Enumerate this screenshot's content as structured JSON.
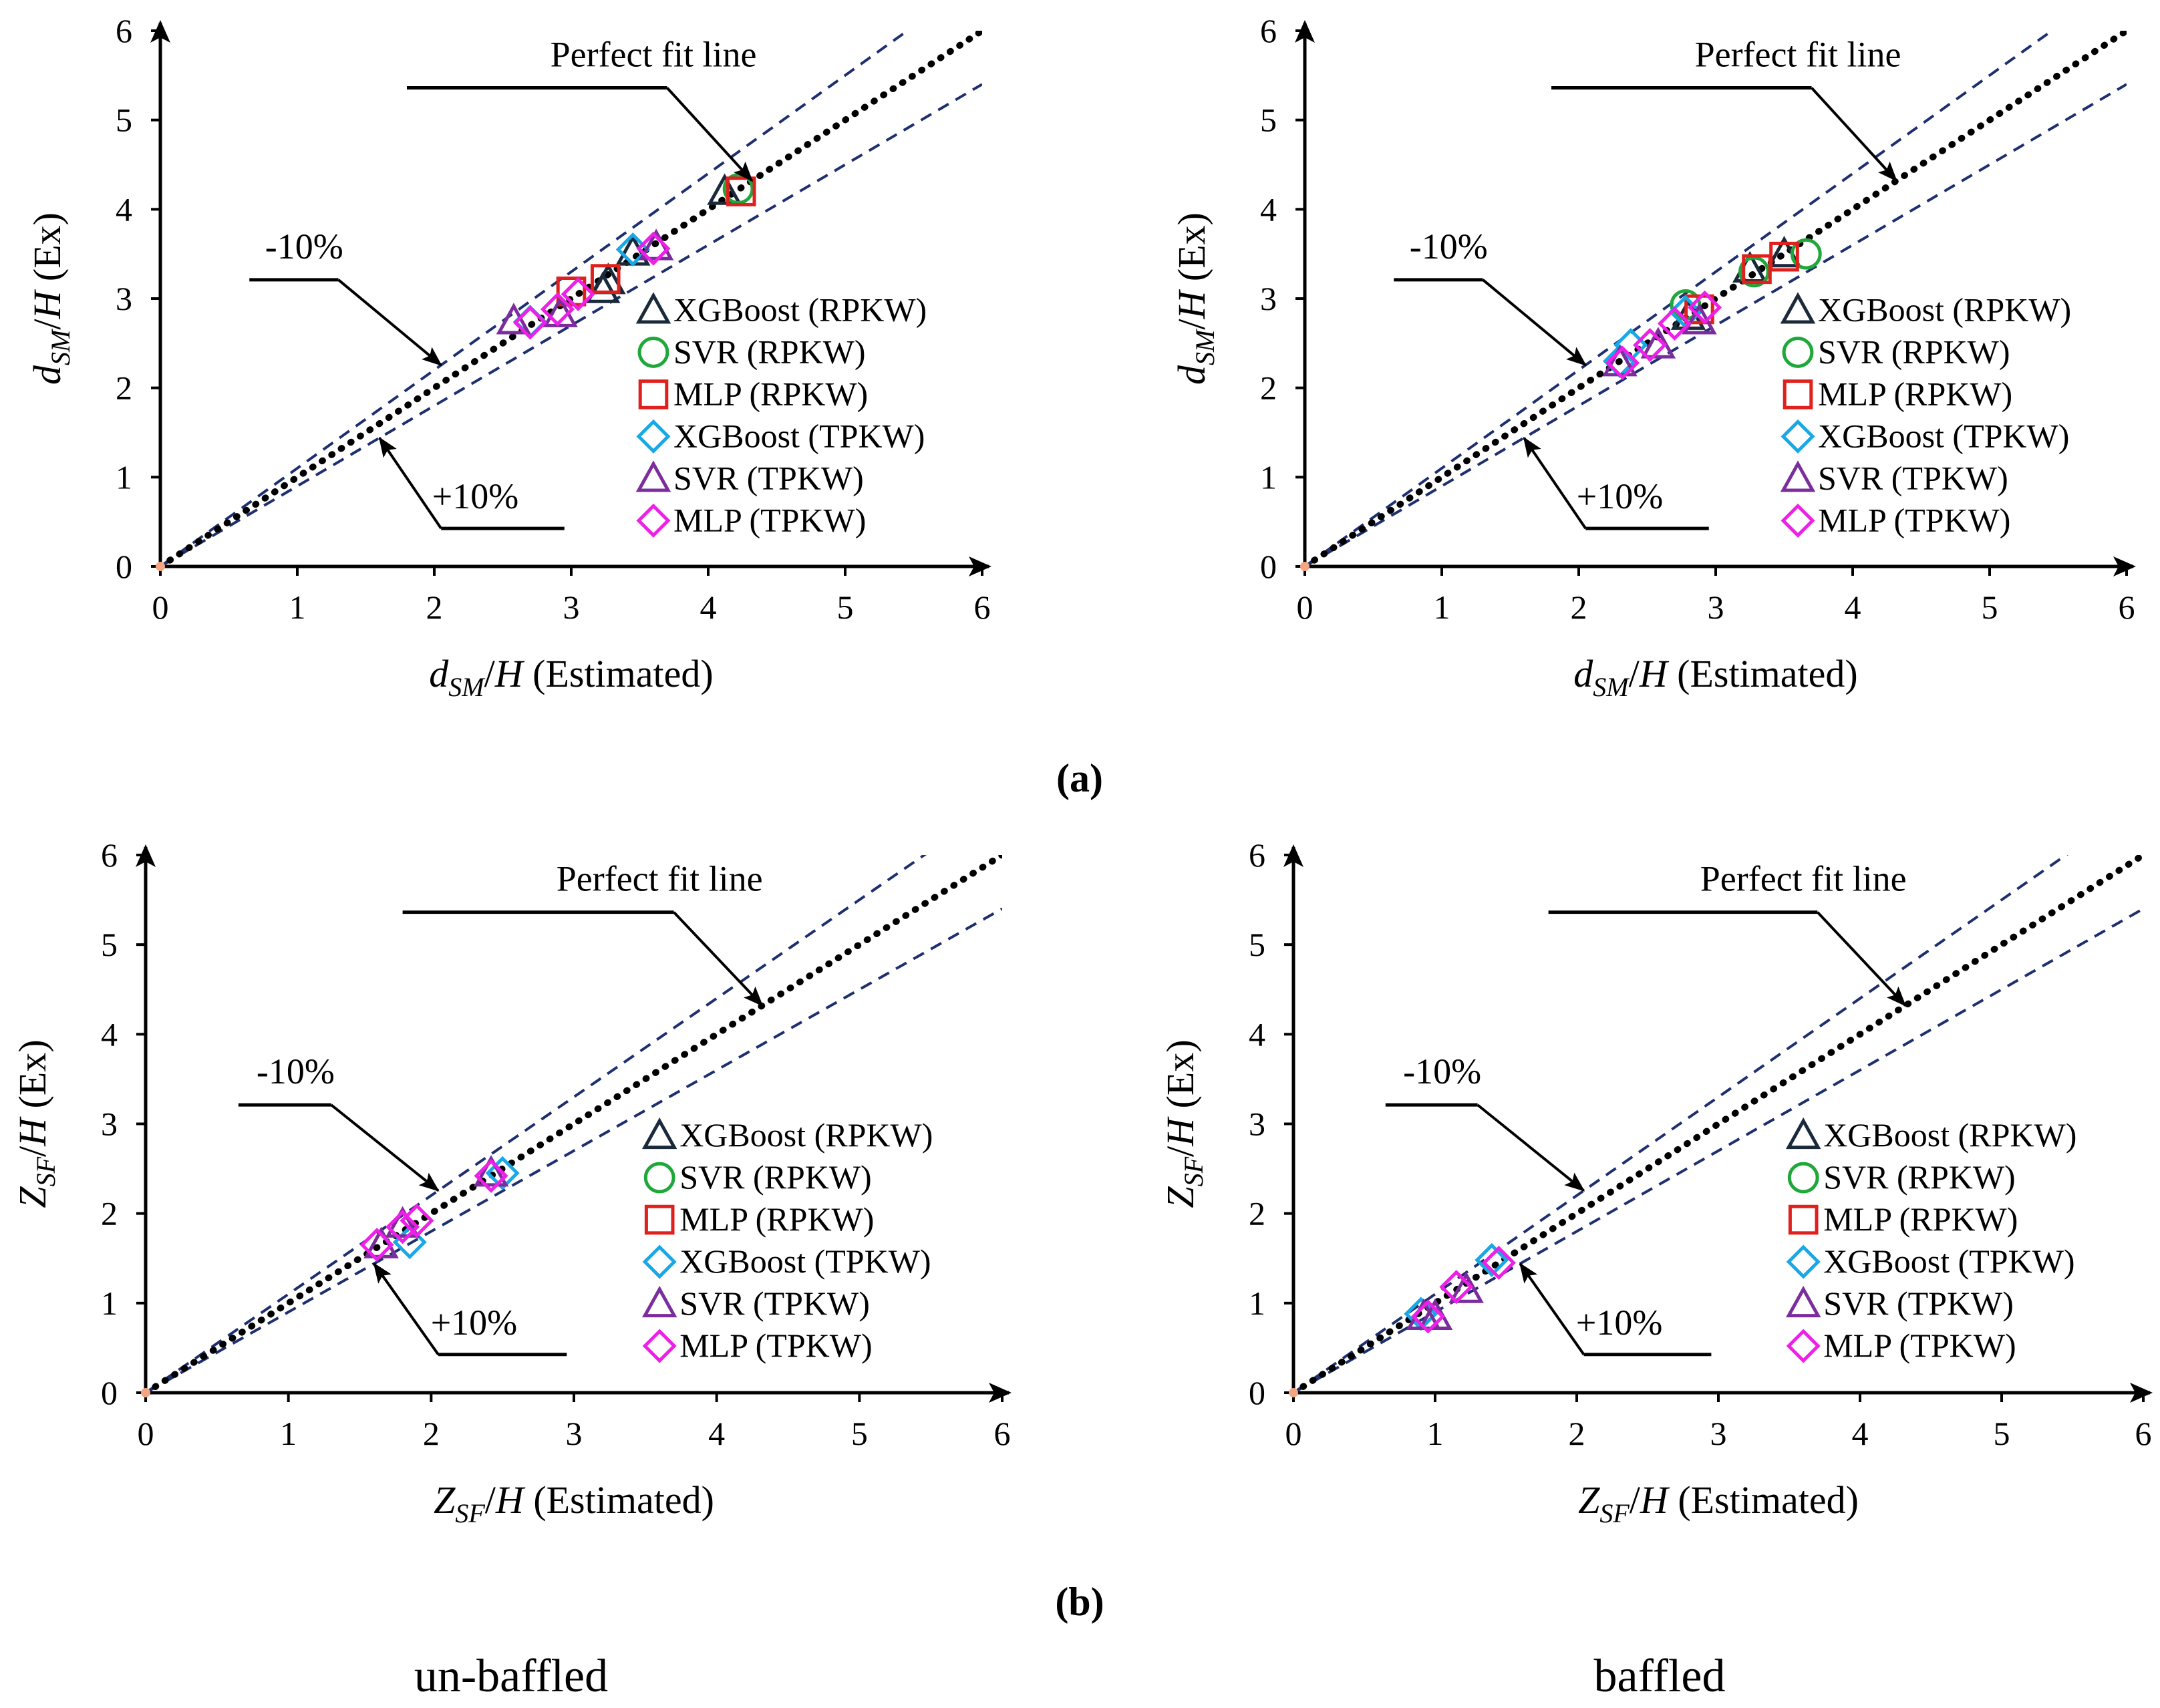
{
  "colors": {
    "XGBoost (RPKW)": "#1a2a3a",
    "SVR (RPKW)": "#1fa83a",
    "MLP (RPKW)": "#e0201c",
    "XGBoost (TPKW)": "#19a8e6",
    "SVR (TPKW)": "#7b2d9e",
    "MLP (TPKW)": "#ee1fe6",
    "perfect_line": "#000000",
    "band_line": "#1d2f6f",
    "origin_marker": "#f4a582"
  },
  "labels": {
    "panel_a": "(a)",
    "panel_b": "(b)",
    "caption_left": "un-baffled",
    "caption_right": "baffled"
  },
  "chart_data": [
    {
      "id": "a-unbaffled",
      "type": "scatter",
      "xlabel": {
        "main": "d",
        "sub": "SM",
        "rest": "/H (Estimated)"
      },
      "ylabel": {
        "main": "d",
        "sub": "SM",
        "rest": "/H (Ex)"
      },
      "xlim": [
        0,
        6
      ],
      "ylim": [
        0,
        6
      ],
      "xticks": [
        0,
        1,
        2,
        3,
        4,
        5,
        6
      ],
      "yticks": [
        0,
        1,
        2,
        3,
        4,
        5,
        6
      ],
      "reference_lines": {
        "perfect_fit": 1.0,
        "minus_10": 1.1,
        "plus_10": 0.9
      },
      "annotations": {
        "perfect": "Perfect fit line",
        "minus": "-10%",
        "plus": "+10%"
      },
      "legend": [
        "XGBoost (RPKW)",
        "SVR (RPKW)",
        "MLP (RPKW)",
        "XGBoost (TPKW)",
        "SVR (TPKW)",
        "MLP (TPKW)"
      ],
      "series": [
        {
          "name": "XGBoost (RPKW)",
          "marker": "triangle",
          "points": [
            [
              4.12,
              4.2
            ],
            [
              3.23,
              3.1
            ],
            [
              3.27,
              3.2
            ],
            [
              3.45,
              3.52
            ]
          ]
        },
        {
          "name": "SVR (RPKW)",
          "marker": "circle",
          "points": [
            [
              4.22,
              4.23
            ]
          ]
        },
        {
          "name": "MLP (RPKW)",
          "marker": "square",
          "points": [
            [
              4.24,
              4.2
            ],
            [
              3.25,
              3.22
            ],
            [
              3.0,
              3.08
            ]
          ]
        },
        {
          "name": "XGBoost (TPKW)",
          "marker": "diamond",
          "points": [
            [
              3.45,
              3.55
            ],
            [
              2.7,
              2.74
            ]
          ]
        },
        {
          "name": "SVR (TPKW)",
          "marker": "triangle",
          "points": [
            [
              2.58,
              2.75
            ],
            [
              3.62,
              3.58
            ],
            [
              2.92,
              2.83
            ]
          ]
        },
        {
          "name": "MLP (TPKW)",
          "marker": "diamond",
          "points": [
            [
              3.6,
              3.56
            ],
            [
              3.05,
              3.05
            ],
            [
              2.9,
              2.88
            ],
            [
              2.7,
              2.73
            ]
          ]
        }
      ]
    },
    {
      "id": "a-baffled",
      "type": "scatter",
      "xlabel": {
        "main": "d",
        "sub": "SM",
        "rest": "/H (Estimated)"
      },
      "ylabel": {
        "main": "d",
        "sub": "SM",
        "rest": "/H (Ex)"
      },
      "xlim": [
        0,
        6
      ],
      "ylim": [
        0,
        6
      ],
      "xticks": [
        0,
        1,
        2,
        3,
        4,
        5,
        6
      ],
      "yticks": [
        0,
        1,
        2,
        3,
        4,
        5,
        6
      ],
      "reference_lines": {
        "perfect_fit": 1.0,
        "minus_10": 1.1,
        "plus_10": 0.9
      },
      "annotations": {
        "perfect": "Perfect fit line",
        "minus": "-10%",
        "plus": "+10%"
      },
      "legend": [
        "XGBoost (RPKW)",
        "SVR (RPKW)",
        "MLP (RPKW)",
        "XGBoost (TPKW)",
        "SVR (TPKW)",
        "MLP (TPKW)"
      ],
      "series": [
        {
          "name": "XGBoost (RPKW)",
          "marker": "triangle",
          "points": [
            [
              3.25,
              3.33
            ],
            [
              3.5,
              3.5
            ],
            [
              2.8,
              2.8
            ]
          ]
        },
        {
          "name": "SVR (RPKW)",
          "marker": "circle",
          "points": [
            [
              3.66,
              3.5
            ],
            [
              3.28,
              3.3
            ],
            [
              2.78,
              2.93
            ]
          ]
        },
        {
          "name": "MLP (RPKW)",
          "marker": "square",
          "points": [
            [
              3.5,
              3.47
            ],
            [
              3.3,
              3.33
            ],
            [
              2.88,
              2.88
            ]
          ]
        },
        {
          "name": "XGBoost (TPKW)",
          "marker": "diamond",
          "points": [
            [
              2.38,
              2.48
            ],
            [
              2.78,
              2.85
            ],
            [
              2.3,
              2.3
            ]
          ]
        },
        {
          "name": "SVR (TPKW)",
          "marker": "triangle",
          "points": [
            [
              2.58,
              2.48
            ],
            [
              2.88,
              2.75
            ],
            [
              2.3,
              2.28
            ]
          ]
        },
        {
          "name": "MLP (TPKW)",
          "marker": "diamond",
          "points": [
            [
              2.92,
              2.9
            ],
            [
              2.7,
              2.72
            ],
            [
              2.52,
              2.48
            ],
            [
              2.32,
              2.28
            ]
          ]
        }
      ]
    },
    {
      "id": "b-unbaffled",
      "type": "scatter",
      "xlabel": {
        "main": "Z",
        "sub": "SF",
        "rest": "/H (Estimated)"
      },
      "ylabel": {
        "main": "Z",
        "sub": "SF",
        "rest": "/H (Ex)"
      },
      "xlim": [
        0,
        6
      ],
      "ylim": [
        0,
        6
      ],
      "xticks": [
        0,
        1,
        2,
        3,
        4,
        5,
        6
      ],
      "yticks": [
        0,
        1,
        2,
        3,
        4,
        5,
        6
      ],
      "reference_lines": {
        "perfect_fit": 1.0,
        "minus_10": 1.1,
        "plus_10": 0.9
      },
      "annotations": {
        "perfect": "Perfect fit line",
        "minus": "-10%",
        "plus": "+10%"
      },
      "legend": [
        "XGBoost (RPKW)",
        "SVR (RPKW)",
        "MLP (RPKW)",
        "XGBoost (TPKW)",
        "SVR (TPKW)",
        "MLP (TPKW)"
      ],
      "series": [
        {
          "name": "XGBoost (RPKW)",
          "marker": "triangle",
          "points": []
        },
        {
          "name": "SVR (RPKW)",
          "marker": "circle",
          "points": []
        },
        {
          "name": "MLP (RPKW)",
          "marker": "square",
          "points": []
        },
        {
          "name": "XGBoost (TPKW)",
          "marker": "diamond",
          "points": [
            [
              2.5,
              2.45
            ],
            [
              1.85,
              1.68
            ]
          ]
        },
        {
          "name": "SVR (TPKW)",
          "marker": "triangle",
          "points": [
            [
              2.42,
              2.45
            ],
            [
              1.8,
              1.88
            ],
            [
              1.65,
              1.65
            ]
          ]
        },
        {
          "name": "MLP (TPKW)",
          "marker": "diamond",
          "points": [
            [
              2.42,
              2.42
            ],
            [
              1.9,
              1.92
            ],
            [
              1.62,
              1.65
            ],
            [
              1.8,
              1.85
            ]
          ]
        }
      ]
    },
    {
      "id": "b-baffled",
      "type": "scatter",
      "xlabel": {
        "main": "Z",
        "sub": "SF",
        "rest": "/H (Estimated)"
      },
      "ylabel": {
        "main": "Z",
        "sub": "SF",
        "rest": "/H (Ex)"
      },
      "xlim": [
        0,
        6
      ],
      "ylim": [
        0,
        6
      ],
      "xticks": [
        0,
        1,
        2,
        3,
        4,
        5,
        6
      ],
      "yticks": [
        0,
        1,
        2,
        3,
        4,
        5,
        6
      ],
      "reference_lines": {
        "perfect_fit": 1.0,
        "minus_10": 1.1,
        "plus_10": 0.9
      },
      "annotations": {
        "perfect": "Perfect fit line",
        "minus": "-10%",
        "plus": "+10%"
      },
      "legend": [
        "XGBoost (RPKW)",
        "SVR (RPKW)",
        "MLP (RPKW)",
        "XGBoost (TPKW)",
        "SVR (TPKW)",
        "MLP (TPKW)"
      ],
      "series": [
        {
          "name": "XGBoost (RPKW)",
          "marker": "triangle",
          "points": []
        },
        {
          "name": "SVR (RPKW)",
          "marker": "circle",
          "points": []
        },
        {
          "name": "MLP (RPKW)",
          "marker": "square",
          "points": []
        },
        {
          "name": "XGBoost (TPKW)",
          "marker": "diamond",
          "points": [
            [
              1.4,
              1.48
            ],
            [
              0.9,
              0.88
            ]
          ]
        },
        {
          "name": "SVR (TPKW)",
          "marker": "triangle",
          "points": [
            [
              1.22,
              1.15
            ],
            [
              1.0,
              0.85
            ],
            [
              0.92,
              0.85
            ]
          ]
        },
        {
          "name": "MLP (TPKW)",
          "marker": "diamond",
          "points": [
            [
              1.45,
              1.45
            ],
            [
              1.15,
              1.18
            ],
            [
              0.95,
              0.85
            ]
          ]
        }
      ]
    }
  ]
}
